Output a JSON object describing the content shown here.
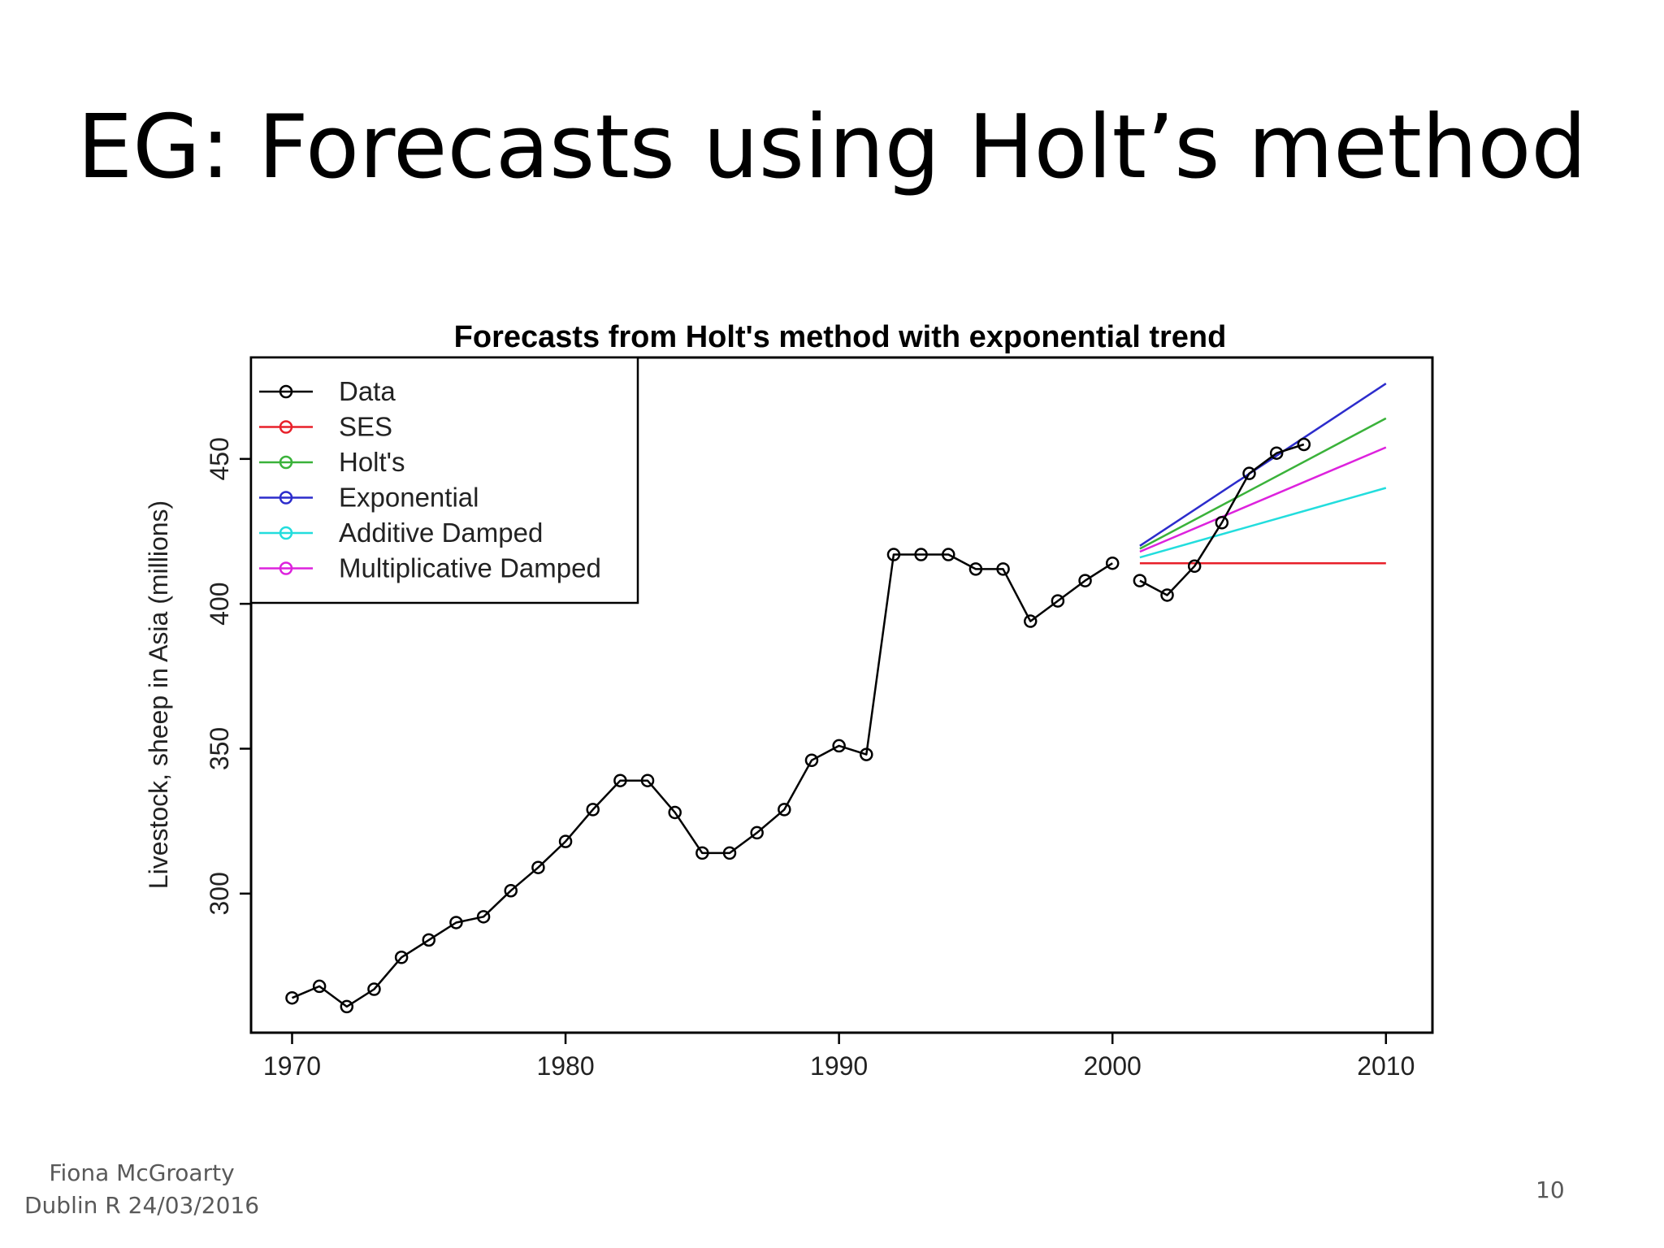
{
  "slide": {
    "title": "EG: Forecasts using Holt’s method",
    "footer_line1": "Fiona McGroarty",
    "footer_line2": "Dublin R 24/03/2016",
    "page_number": "10"
  },
  "chart_data": {
    "type": "line",
    "title": "Forecasts from Holt's method with exponential trend",
    "xlabel": "",
    "ylabel": "Livestock, sheep in Asia (millions)",
    "xlim": [
      1968.5,
      2011.7
    ],
    "ylim": [
      252,
      485
    ],
    "xticks": [
      1970,
      1980,
      1990,
      2000,
      2010
    ],
    "yticks": [
      300,
      350,
      400,
      450
    ],
    "legend_position": "top-left",
    "grid": false,
    "series": [
      {
        "name": "Data",
        "color": "#000000",
        "markers": true,
        "segments": [
          {
            "x": [
              1970,
              1971,
              1972,
              1973,
              1974,
              1975,
              1976,
              1977,
              1978,
              1979,
              1980,
              1981,
              1982,
              1983,
              1984,
              1985,
              1986,
              1987,
              1988,
              1989,
              1990,
              1991,
              1992,
              1993,
              1994,
              1995,
              1996,
              1997,
              1998,
              1999,
              2000
            ],
            "y": [
              264,
              268,
              261,
              267,
              278,
              284,
              290,
              292,
              301,
              309,
              318,
              329,
              339,
              339,
              328,
              314,
              314,
              321,
              329,
              346,
              351,
              348,
              417,
              417,
              417,
              412,
              412,
              394,
              401,
              408,
              414
            ]
          },
          {
            "x": [
              2001,
              2002,
              2003,
              2004,
              2005,
              2006,
              2007
            ],
            "y": [
              408,
              403,
              413,
              428,
              445,
              452,
              455
            ]
          }
        ]
      },
      {
        "name": "SES",
        "color": "#e8202a",
        "markers": false,
        "segments": [
          {
            "x": [
              2001,
              2010
            ],
            "y": [
              414,
              414
            ]
          }
        ]
      },
      {
        "name": "Holt's",
        "color": "#3ab23a",
        "markers": false,
        "segments": [
          {
            "x": [
              2001,
              2010
            ],
            "y": [
              419,
              464
            ]
          }
        ]
      },
      {
        "name": "Exponential",
        "color": "#2c2ccc",
        "markers": false,
        "segments": [
          {
            "x": [
              2001,
              2010
            ],
            "y": [
              420,
              476
            ]
          }
        ]
      },
      {
        "name": "Additive Damped",
        "color": "#22dddd",
        "markers": false,
        "segments": [
          {
            "x": [
              2001,
              2010
            ],
            "y": [
              416,
              440
            ]
          }
        ]
      },
      {
        "name": "Multiplicative Damped",
        "color": "#dd22dd",
        "markers": false,
        "segments": [
          {
            "x": [
              2001,
              2010
            ],
            "y": [
              418,
              454
            ]
          }
        ]
      }
    ]
  }
}
